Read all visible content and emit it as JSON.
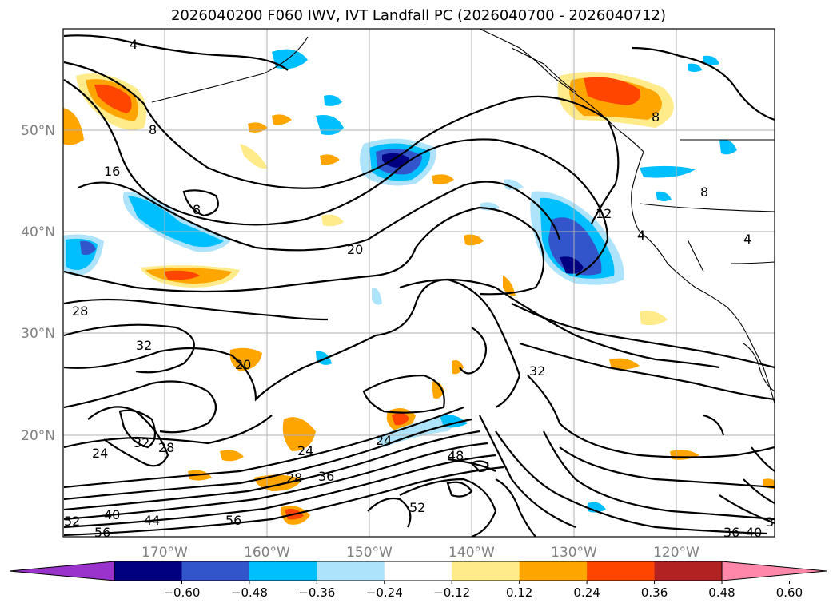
{
  "title": "2026040200 F060 IWV, IVT Landfall PC (2026040700 - 2026040712)",
  "lon_labels": [
    "170°W",
    "160°W",
    "150°W",
    "140°W",
    "130°W",
    "120°W"
  ],
  "lat_labels": [
    "50°N",
    "40°N",
    "30°N",
    "20°N"
  ],
  "contour_labels": [
    "4",
    "8",
    "8",
    "16",
    "20",
    "12",
    "8",
    "8",
    "4",
    "4",
    "28",
    "32",
    "20",
    "32",
    "24",
    "32",
    "28",
    "24",
    "24",
    "28",
    "36",
    "48",
    "52",
    "40",
    "44",
    "56",
    "56",
    "52",
    "36",
    "40",
    "3"
  ],
  "colorbar": {
    "ticks": [
      "−0.60",
      "−0.48",
      "−0.36",
      "−0.24",
      "−0.12",
      "0.12",
      "0.24",
      "0.36",
      "0.48",
      "0.60"
    ],
    "colors": [
      "#9933cc",
      "#000080",
      "#3355cc",
      "#00bfff",
      "#ade3fb",
      "#ffffff",
      "#ffeb8a",
      "#ffa500",
      "#ff4500",
      "#b22222",
      "#ff88aa"
    ]
  }
}
